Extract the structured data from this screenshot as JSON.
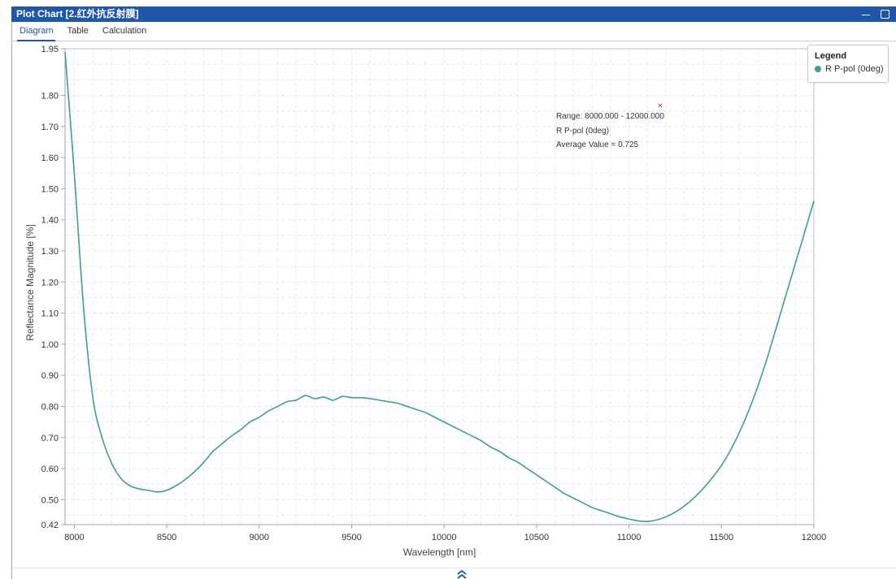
{
  "window": {
    "title": "Plot Chart [2.红外抗反射膜]",
    "minimize_icon": "minimize-icon",
    "maximize_icon": "maximize-icon"
  },
  "tabs": [
    {
      "label": "Diagram",
      "active": true
    },
    {
      "label": "Table",
      "active": false
    },
    {
      "label": "Calculation",
      "active": false
    }
  ],
  "legend": {
    "title": "Legend",
    "items": [
      {
        "label": "R P-pol (0deg)",
        "color": "#3f9e93"
      }
    ]
  },
  "annotation": {
    "lines": [
      "Range: 8000.000 - 12000.000",
      "R P-pol (0deg)",
      "Average Value = 0.725"
    ],
    "marker": "×",
    "marker_color": "#e0453a"
  },
  "expand_icon": "double-chevron-up-icon",
  "chart_data": {
    "type": "line",
    "xlabel": "Wavelength [nm]",
    "ylabel": "Reflectance Magnitude [%]",
    "xlim": [
      7950,
      12000
    ],
    "ylim": [
      0.42,
      1.95
    ],
    "xticks": [
      8000,
      8500,
      9000,
      9500,
      10000,
      10500,
      11000,
      11500,
      12000
    ],
    "yticks": [
      0.42,
      0.5,
      0.6,
      0.7,
      0.8,
      0.9,
      1.0,
      1.1,
      1.2,
      1.3,
      1.4,
      1.5,
      1.6,
      1.7,
      1.8,
      1.95
    ],
    "ytick_labels": [
      "0.42",
      "0.50",
      "0.60",
      "0.70",
      "0.80",
      "0.90",
      "1.00",
      "1.10",
      "1.20",
      "1.30",
      "1.40",
      "1.50",
      "1.60",
      "1.70",
      "1.80",
      "1.95"
    ],
    "grid": true,
    "series": [
      {
        "name": "R P-pol (0deg)",
        "color": "#3f9e93",
        "x": [
          7950,
          8000,
          8050,
          8100,
          8150,
          8200,
          8250,
          8300,
          8350,
          8400,
          8450,
          8500,
          8550,
          8600,
          8650,
          8700,
          8750,
          8800,
          8850,
          8900,
          8950,
          9000,
          9050,
          9100,
          9150,
          9200,
          9250,
          9300,
          9350,
          9400,
          9450,
          9500,
          9550,
          9600,
          9650,
          9700,
          9750,
          9800,
          9850,
          9900,
          9950,
          10000,
          10050,
          10100,
          10150,
          10200,
          10250,
          10300,
          10350,
          10400,
          10450,
          10500,
          10550,
          10600,
          10650,
          10700,
          10750,
          10800,
          10850,
          10900,
          10950,
          11000,
          11050,
          11100,
          11150,
          11200,
          11250,
          11300,
          11350,
          11400,
          11450,
          11500,
          11550,
          11600,
          11650,
          11700,
          11750,
          11800,
          11850,
          11900,
          11950,
          12000
        ],
        "y": [
          1.94,
          1.55,
          1.12,
          0.83,
          0.7,
          0.62,
          0.57,
          0.545,
          0.535,
          0.53,
          0.525,
          0.53,
          0.545,
          0.565,
          0.59,
          0.62,
          0.655,
          0.68,
          0.705,
          0.725,
          0.75,
          0.765,
          0.785,
          0.8,
          0.815,
          0.82,
          0.835,
          0.825,
          0.83,
          0.82,
          0.832,
          0.828,
          0.828,
          0.825,
          0.82,
          0.815,
          0.81,
          0.8,
          0.79,
          0.78,
          0.765,
          0.75,
          0.735,
          0.72,
          0.705,
          0.69,
          0.67,
          0.655,
          0.635,
          0.62,
          0.6,
          0.58,
          0.56,
          0.54,
          0.52,
          0.505,
          0.49,
          0.475,
          0.465,
          0.455,
          0.445,
          0.438,
          0.432,
          0.43,
          0.435,
          0.445,
          0.46,
          0.48,
          0.505,
          0.535,
          0.57,
          0.61,
          0.66,
          0.72,
          0.79,
          0.87,
          0.96,
          1.06,
          1.16,
          1.26,
          1.36,
          1.46
        ]
      }
    ]
  }
}
